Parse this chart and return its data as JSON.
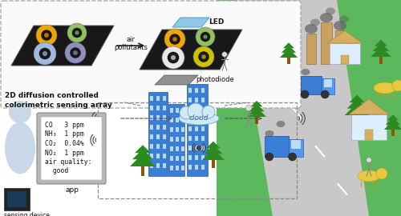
{
  "bg_color": "#ffffff",
  "road_color": "#c8c8c8",
  "grass_color": "#5cb85c",
  "grass_dark": "#4a9e3f",
  "building_color": "#3a7fd5",
  "building_window": "#b8d8f8",
  "truck_color": "#3a7fd5",
  "plate_color": "#1a1a1a",
  "cloud_color": "#d0eaf8",
  "phone_bg": "#b0b0b0",
  "phone_screen": "#ffffff",
  "led_color": "#90c8e8",
  "photodiode_color": "#909090",
  "factory_color": "#c8a060",
  "house_wall": "#ddeeff",
  "house_roof": "#d4b060",
  "person_color": "#cccccc",
  "cow_color": "#e8c840",
  "circle_before": [
    "#f0a500",
    "#90c060",
    "#a0b8e0",
    "#9090c0"
  ],
  "circle_after": [
    "#f0a500",
    "#90c060",
    "#e8e8e8",
    "#d0c000"
  ],
  "smoke_color": "#606060",
  "dashed_color": "#888888",
  "arrow_color": "#333333",
  "title_text": "2D diffusion controlled\ncolorimetric sensing array",
  "app_text_lines": [
    "CO   3 ppm",
    "NH₃  1 ppm",
    "CO₂  0.04%",
    "NO₂  1 ppm",
    "air quality:",
    "  good"
  ],
  "figsize": [
    5.0,
    2.7
  ],
  "dpi": 100
}
